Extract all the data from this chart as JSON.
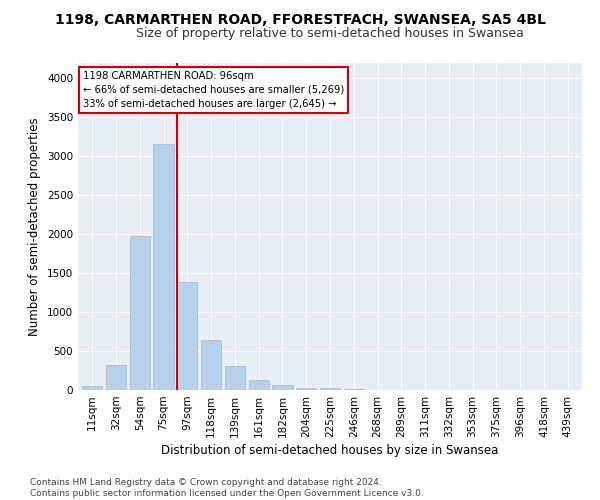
{
  "title": "1198, CARMARTHEN ROAD, FFORESTFACH, SWANSEA, SA5 4BL",
  "subtitle": "Size of property relative to semi-detached houses in Swansea",
  "xlabel": "Distribution of semi-detached houses by size in Swansea",
  "ylabel": "Number of semi-detached properties",
  "categories": [
    "11sqm",
    "32sqm",
    "54sqm",
    "75sqm",
    "97sqm",
    "118sqm",
    "139sqm",
    "161sqm",
    "182sqm",
    "204sqm",
    "225sqm",
    "246sqm",
    "268sqm",
    "289sqm",
    "311sqm",
    "332sqm",
    "353sqm",
    "375sqm",
    "396sqm",
    "418sqm",
    "439sqm"
  ],
  "values": [
    50,
    325,
    1970,
    3160,
    1380,
    640,
    310,
    130,
    70,
    30,
    20,
    10,
    5,
    5,
    5,
    5,
    5,
    5,
    5,
    5,
    5
  ],
  "bar_color": "#b8d0ea",
  "bar_edge_color": "#9ab8d8",
  "vline_index": 4,
  "vline_color": "#cc0000",
  "annotation_text": "1198 CARMARTHEN ROAD: 96sqm\n← 66% of semi-detached houses are smaller (5,269)\n33% of semi-detached houses are larger (2,645) →",
  "ylim": [
    0,
    4200
  ],
  "yticks": [
    0,
    500,
    1000,
    1500,
    2000,
    2500,
    3000,
    3500,
    4000
  ],
  "footer": "Contains HM Land Registry data © Crown copyright and database right 2024.\nContains public sector information licensed under the Open Government Licence v3.0.",
  "bg_color": "#ffffff",
  "plot_bg_color": "#e8eef5",
  "grid_color": "#ffffff",
  "title_fontsize": 10,
  "subtitle_fontsize": 9,
  "axis_label_fontsize": 8.5,
  "tick_fontsize": 7.5,
  "footer_fontsize": 6.5
}
